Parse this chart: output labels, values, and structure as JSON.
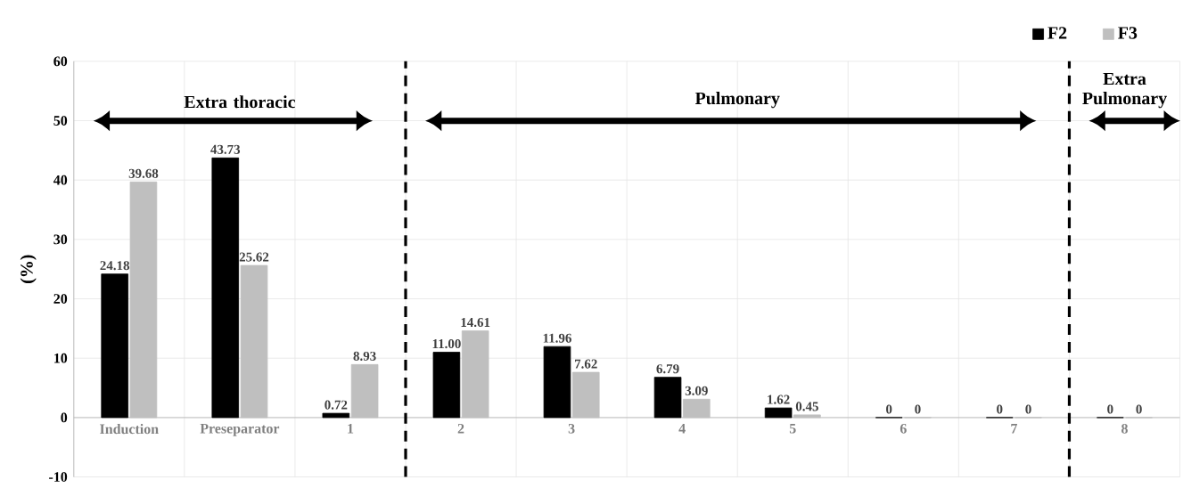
{
  "chart_data": {
    "type": "bar",
    "ylabel": "(%)",
    "categories": [
      "Induction",
      "Preseparator",
      "1",
      "2",
      "3",
      "4",
      "5",
      "6",
      "7",
      "8"
    ],
    "series": [
      {
        "name": "F2",
        "color": "#000000",
        "values": [
          24.18,
          43.73,
          0.72,
          11.0,
          11.96,
          6.79,
          1.62,
          0,
          0,
          0
        ],
        "value_labels": [
          "24.18",
          "43.73",
          "0.72",
          "11.00",
          "11.96",
          "6.79",
          "1.62",
          "0",
          "0",
          "0"
        ]
      },
      {
        "name": "F3",
        "color": "#bfbfbf",
        "values": [
          39.68,
          25.62,
          8.93,
          14.61,
          7.62,
          3.09,
          0.45,
          0,
          0,
          0
        ],
        "value_labels": [
          "39.68",
          "25.62",
          "8.93",
          "14.61",
          "7.62",
          "3.09",
          "0.45",
          "0",
          "0",
          "0"
        ]
      }
    ],
    "ylim": [
      -10,
      60
    ],
    "yticks": [
      -10,
      0,
      10,
      20,
      30,
      40,
      50,
      60
    ],
    "grid": true,
    "legend": "top right",
    "annotations": [
      "Extra thoracic",
      "Pulmonary",
      "Extra Pulmonary"
    ]
  }
}
